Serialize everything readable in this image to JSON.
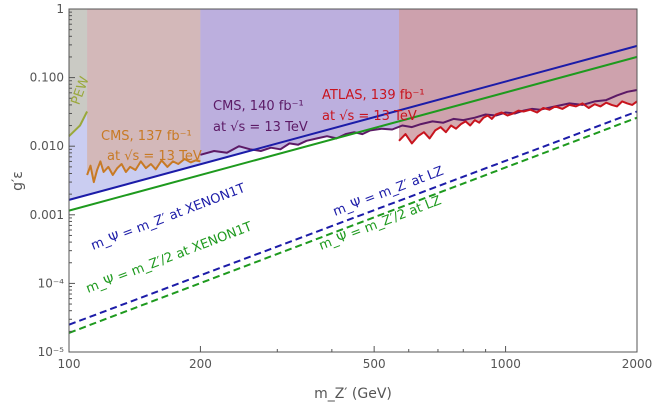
{
  "chart_data": {
    "type": "line",
    "title": "",
    "xlabel": "m_Z′ (GeV)",
    "ylabel": "g′ε",
    "x_scale": "log",
    "y_scale": "log",
    "xlim": [
      100,
      2000
    ],
    "ylim": [
      1e-05,
      1
    ],
    "x_ticks": [
      {
        "v": 100,
        "label": "100"
      },
      {
        "v": 200,
        "label": "200"
      },
      {
        "v": 500,
        "label": "500"
      },
      {
        "v": 1000,
        "label": "1000"
      },
      {
        "v": 2000,
        "label": "2000"
      }
    ],
    "y_ticks": [
      {
        "v": 1,
        "label": "1"
      },
      {
        "v": 0.1,
        "label": "0.100"
      },
      {
        "v": 0.01,
        "label": "0.010"
      },
      {
        "v": 0.001,
        "label": "0.001"
      },
      {
        "v": 0.0001,
        "label": "10⁻⁴"
      },
      {
        "v": 1e-05,
        "label": "10⁻⁵"
      }
    ],
    "grid": false,
    "regions": [
      {
        "id": "pew",
        "label": "PEW",
        "color": "#9aa83a",
        "fill": "#c9c9bd",
        "x": [
          100,
          106,
          110
        ],
        "y": [
          0.014,
          0.02,
          0.032
        ]
      },
      {
        "id": "cms137",
        "label": "CMS, 137 fb⁻¹",
        "label2": "at √s = 13 TeV",
        "color": "#c87a25",
        "fill": "#d4b5b0",
        "x": [
          110,
          112,
          114,
          116,
          118,
          120,
          123,
          126,
          129,
          132,
          135,
          138,
          142,
          146,
          150,
          154,
          158,
          163,
          168,
          173,
          178,
          184,
          190,
          195,
          200
        ],
        "y": [
          0.0038,
          0.0052,
          0.003,
          0.0045,
          0.006,
          0.0042,
          0.005,
          0.0038,
          0.0048,
          0.0055,
          0.0042,
          0.005,
          0.0045,
          0.006,
          0.0048,
          0.0055,
          0.0046,
          0.0062,
          0.005,
          0.006,
          0.0055,
          0.0065,
          0.0058,
          0.0062,
          0.006
        ]
      },
      {
        "id": "cms140",
        "label": "CMS, 140 fb⁻¹",
        "label2": "at √s = 13 TeV",
        "color": "#5c1a66",
        "fill": "#b9abdb",
        "x": [
          200,
          215,
          230,
          245,
          260,
          275,
          290,
          305,
          320,
          335,
          350,
          370,
          390,
          410,
          430,
          450,
          470,
          490,
          520,
          550,
          580,
          610,
          640,
          680,
          720,
          760,
          800,
          850,
          900,
          950,
          1000,
          1050,
          1100,
          1150,
          1200,
          1300,
          1400,
          1500,
          1600,
          1700,
          1800,
          1900,
          2000
        ],
        "y": [
          0.0075,
          0.0085,
          0.008,
          0.01,
          0.009,
          0.0085,
          0.0095,
          0.009,
          0.011,
          0.0105,
          0.012,
          0.013,
          0.014,
          0.013,
          0.015,
          0.016,
          0.015,
          0.017,
          0.018,
          0.0175,
          0.02,
          0.019,
          0.021,
          0.023,
          0.022,
          0.025,
          0.024,
          0.026,
          0.029,
          0.028,
          0.031,
          0.03,
          0.033,
          0.035,
          0.034,
          0.038,
          0.042,
          0.04,
          0.045,
          0.047,
          0.055,
          0.062,
          0.066
        ]
      },
      {
        "id": "atlas139",
        "label": "ATLAS, 139 fb⁻¹",
        "label2": "at √s = 13 TeV",
        "color": "#c8141e",
        "fill": "#cf9fa6",
        "x": [
          570,
          590,
          610,
          630,
          650,
          670,
          690,
          710,
          730,
          750,
          770,
          790,
          810,
          830,
          850,
          870,
          890,
          910,
          930,
          950,
          980,
          1010,
          1040,
          1070,
          1100,
          1140,
          1180,
          1220,
          1260,
          1300,
          1350,
          1400,
          1450,
          1500,
          1550,
          1600,
          1650,
          1700,
          1750,
          1800,
          1850,
          1900,
          1950,
          2000
        ],
        "y": [
          0.012,
          0.015,
          0.011,
          0.014,
          0.016,
          0.013,
          0.017,
          0.019,
          0.016,
          0.02,
          0.018,
          0.021,
          0.023,
          0.02,
          0.024,
          0.022,
          0.026,
          0.028,
          0.025,
          0.029,
          0.031,
          0.028,
          0.03,
          0.033,
          0.032,
          0.034,
          0.031,
          0.036,
          0.034,
          0.038,
          0.035,
          0.04,
          0.038,
          0.042,
          0.036,
          0.041,
          0.038,
          0.043,
          0.04,
          0.038,
          0.045,
          0.042,
          0.04,
          0.045
        ]
      }
    ],
    "series": [
      {
        "name": "m_Ψ = m_Z′ at XENON1T",
        "color": "#1c1ca8",
        "dash": false,
        "x": [
          100,
          2000
        ],
        "y": [
          0.00165,
          0.29
        ]
      },
      {
        "name": "m_Ψ = m_Z′/2 at XENON1T",
        "color": "#1e9a1e",
        "dash": false,
        "x": [
          100,
          2000
        ],
        "y": [
          0.00115,
          0.2
        ]
      },
      {
        "name": "m_Ψ = m_Z′ at LZ",
        "color": "#1c1ca8",
        "dash": true,
        "x": [
          100,
          2000
        ],
        "y": [
          2.5e-05,
          0.032
        ]
      },
      {
        "name": "m_Ψ = m_Z′/2 at LZ",
        "color": "#1e9a1e",
        "dash": true,
        "x": [
          100,
          2000
        ],
        "y": [
          1.9e-05,
          0.026
        ]
      }
    ]
  }
}
